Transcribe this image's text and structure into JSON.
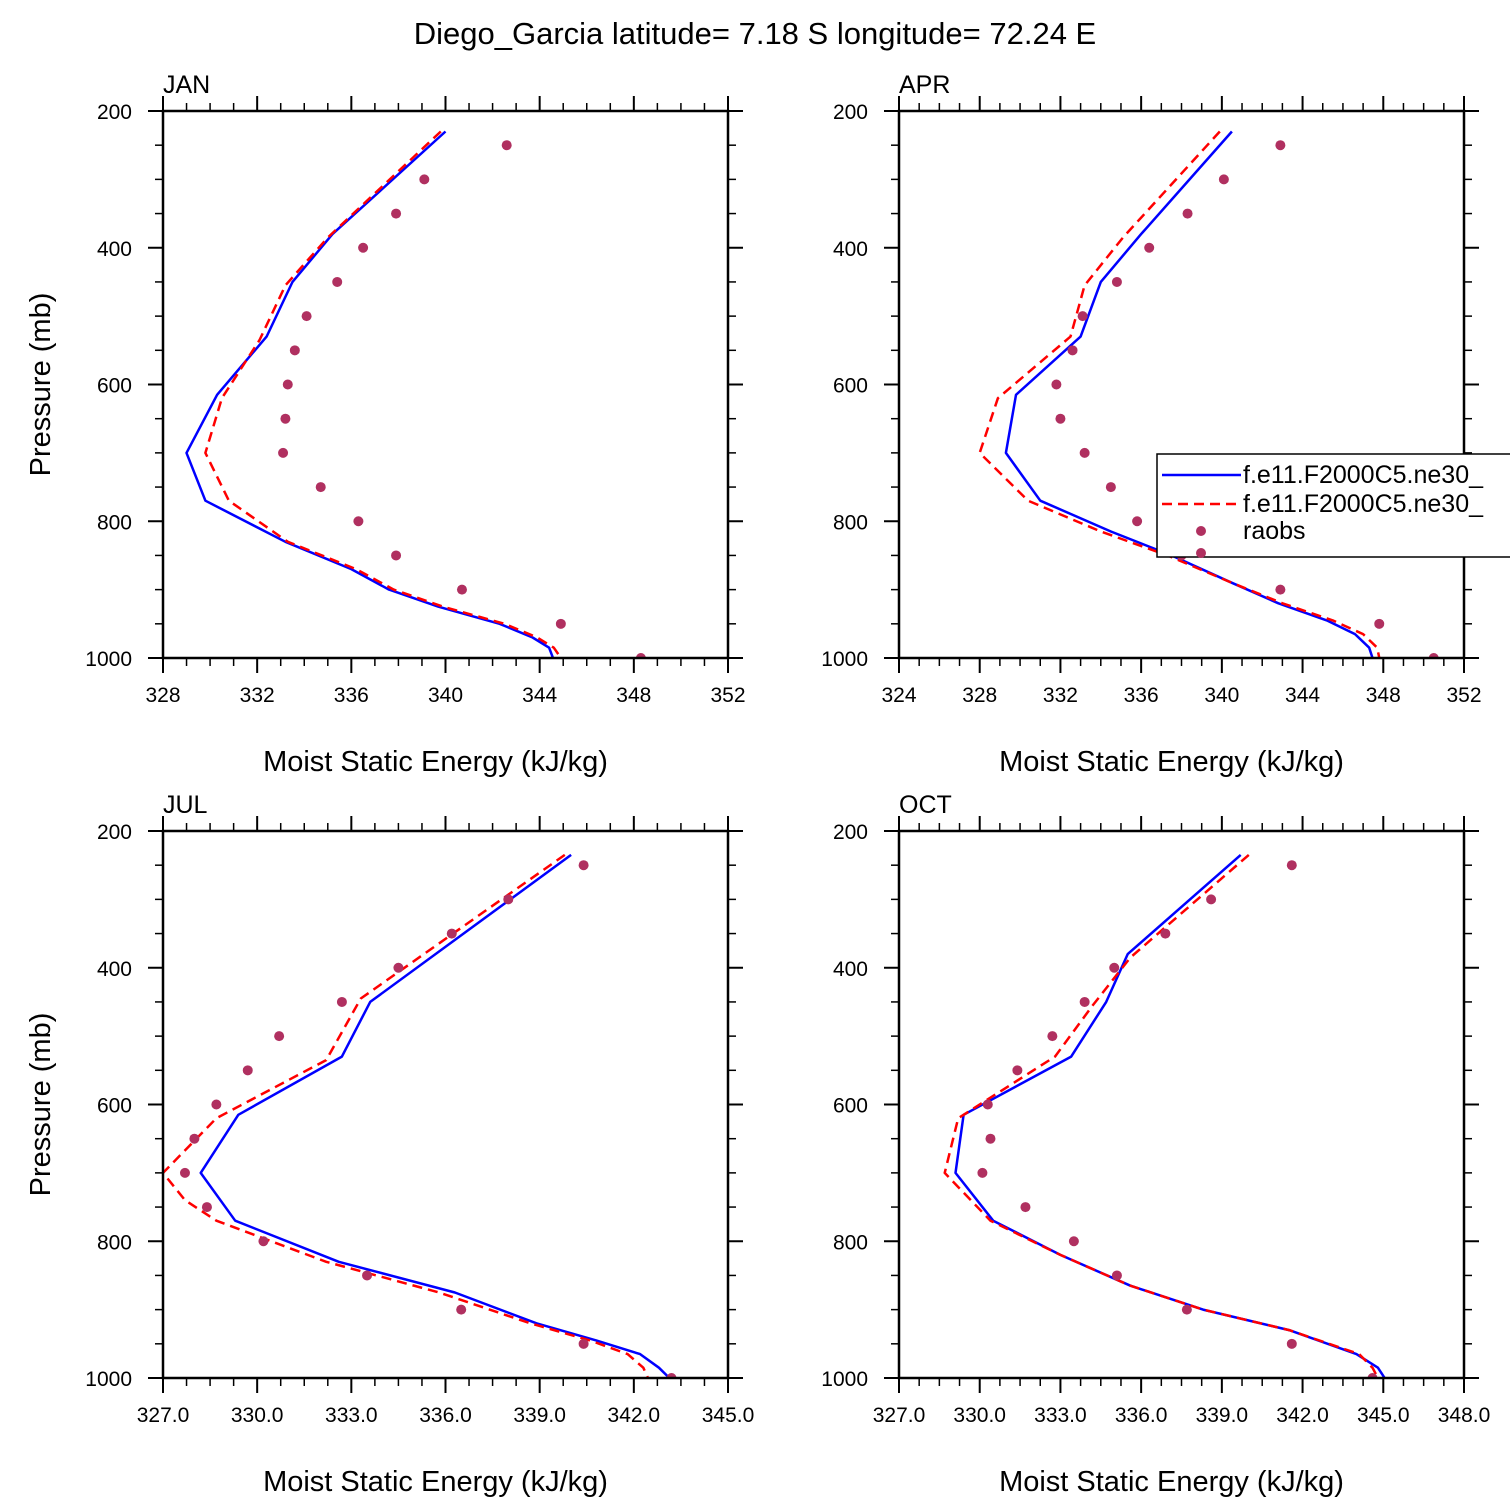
{
  "title": "Diego_Garcia  latitude= 7.18 S longitude= 72.24 E",
  "colors": {
    "model1": "#0000ff",
    "model2": "#ff0000",
    "raobs": "#b03060",
    "frame": "#000000"
  },
  "legend": {
    "location": "right edge of APR panel",
    "entries": [
      {
        "label": "f.e11.F2000C5.ne30_",
        "style": "solid",
        "color": "#0000ff"
      },
      {
        "label": "f.e11.F2000C5.ne30_",
        "style": "dashed",
        "color": "#ff0000"
      },
      {
        "label": "raobs",
        "style": "markers",
        "color": "#b03060"
      }
    ]
  },
  "chart_data": [
    {
      "type": "line",
      "panel": "JAN",
      "xlabel": "Moist Static Energy (kJ/kg)",
      "ylabel": "Pressure (mb)",
      "xlim": [
        328,
        352
      ],
      "ylim": [
        200,
        1000
      ],
      "y_inverted": true,
      "xticks": [
        "328",
        "332",
        "336",
        "340",
        "344",
        "348",
        "352"
      ],
      "yticks": [
        "200",
        "400",
        "600",
        "800",
        "1000"
      ],
      "series": [
        {
          "name": "f.e11.F2000C5.ne30_ (solid)",
          "style": "solid",
          "color": "#0000ff",
          "x": [
            340.0,
            335.2,
            333.5,
            332.4,
            330.3,
            329.0,
            329.8,
            333.2,
            336.0,
            337.6,
            339.7,
            342.3,
            343.7,
            344.4,
            344.6
          ],
          "y": [
            230,
            380,
            450,
            530,
            615,
            700,
            770,
            830,
            870,
            900,
            925,
            950,
            970,
            985,
            1003
          ]
        },
        {
          "name": "f.e11.F2000C5.ne30_ (dashed)",
          "style": "dashed",
          "color": "#ff0000",
          "x": [
            339.8,
            335.0,
            333.2,
            332.1,
            330.5,
            329.8,
            330.8,
            333.3,
            336.2,
            337.8,
            339.9,
            342.5,
            343.9,
            344.6,
            344.9
          ],
          "y": [
            230,
            385,
            455,
            535,
            620,
            700,
            770,
            830,
            870,
            900,
            925,
            950,
            970,
            985,
            1000
          ]
        },
        {
          "name": "raobs",
          "style": "markers",
          "color": "#b03060",
          "x": [
            342.6,
            339.1,
            337.9,
            336.5,
            335.4,
            334.1,
            333.6,
            333.3,
            333.2,
            333.1,
            334.7,
            336.3,
            337.9,
            340.7,
            344.9,
            348.3
          ],
          "y": [
            250,
            300,
            350,
            400,
            450,
            500,
            550,
            600,
            650,
            700,
            750,
            800,
            850,
            900,
            950,
            1000
          ]
        }
      ]
    },
    {
      "type": "line",
      "panel": "APR",
      "xlabel": "Moist Static Energy (kJ/kg)",
      "ylabel": "",
      "xlim": [
        324,
        352
      ],
      "ylim": [
        200,
        1000
      ],
      "y_inverted": true,
      "xticks": [
        "324",
        "328",
        "332",
        "336",
        "340",
        "344",
        "348",
        "352"
      ],
      "yticks": [
        "200",
        "400",
        "600",
        "800",
        "1000"
      ],
      "series": [
        {
          "name": "f.e11.F2000C5.ne30_ (solid)",
          "style": "solid",
          "color": "#0000ff",
          "x": [
            340.5,
            336.0,
            334.0,
            333.0,
            329.8,
            329.3,
            331.0,
            334.5,
            337.5,
            340.5,
            342.8,
            345.2,
            346.6,
            347.3,
            347.5
          ],
          "y": [
            230,
            380,
            450,
            530,
            615,
            700,
            770,
            815,
            850,
            890,
            920,
            945,
            965,
            985,
            1003
          ]
        },
        {
          "name": "f.e11.F2000C5.ne30_ (dashed)",
          "style": "dashed",
          "color": "#ff0000",
          "x": [
            339.9,
            335.1,
            333.2,
            332.5,
            328.9,
            328.0,
            330.4,
            334.0,
            337.3,
            340.5,
            343.0,
            345.5,
            347.0,
            347.7,
            347.8
          ],
          "y": [
            230,
            385,
            455,
            530,
            620,
            700,
            770,
            815,
            850,
            890,
            920,
            945,
            965,
            985,
            1000
          ]
        },
        {
          "name": "raobs",
          "style": "markers",
          "color": "#b03060",
          "x": [
            342.9,
            340.1,
            338.3,
            336.4,
            334.8,
            333.1,
            332.6,
            331.8,
            332.0,
            333.2,
            334.5,
            335.8,
            338.0,
            342.9,
            347.8,
            350.5
          ],
          "y": [
            250,
            300,
            350,
            400,
            450,
            500,
            550,
            600,
            650,
            700,
            750,
            800,
            850,
            900,
            950,
            1000
          ]
        }
      ]
    },
    {
      "type": "line",
      "panel": "JUL",
      "xlabel": "Moist Static Energy (kJ/kg)",
      "ylabel": "Pressure (mb)",
      "xlim": [
        327.0,
        345.0
      ],
      "ylim": [
        200,
        1000
      ],
      "y_inverted": true,
      "xticks": [
        "327.0",
        "330.0",
        "333.0",
        "336.0",
        "339.0",
        "342.0",
        "345.0"
      ],
      "yticks": [
        "200",
        "400",
        "600",
        "800",
        "1000"
      ],
      "series": [
        {
          "name": "f.e11.F2000C5.ne30_ (solid)",
          "style": "solid",
          "color": "#0000ff",
          "x": [
            340.0,
            333.6,
            332.7,
            329.4,
            328.2,
            329.3,
            332.6,
            336.3,
            338.9,
            340.8,
            342.2,
            342.8,
            343.2
          ],
          "y": [
            235,
            450,
            530,
            615,
            700,
            770,
            830,
            875,
            920,
            945,
            965,
            985,
            1003
          ]
        },
        {
          "name": "f.e11.F2000C5.ne30_ (dashed)",
          "style": "dashed",
          "color": "#ff0000",
          "x": [
            339.8,
            333.3,
            332.2,
            328.7,
            327.0,
            327.7,
            328.7,
            332.2,
            335.8,
            338.7,
            340.6,
            341.8,
            342.3,
            342.5
          ],
          "y": [
            235,
            445,
            535,
            620,
            700,
            740,
            770,
            830,
            875,
            920,
            945,
            965,
            985,
            1005
          ]
        },
        {
          "name": "raobs",
          "style": "markers",
          "color": "#b03060",
          "x": [
            340.4,
            338.0,
            336.2,
            334.5,
            332.7,
            330.7,
            329.7,
            328.7,
            328.0,
            327.7,
            328.4,
            330.2,
            333.5,
            336.5,
            340.4,
            343.2
          ],
          "y": [
            250,
            300,
            350,
            400,
            450,
            500,
            550,
            600,
            650,
            700,
            750,
            800,
            850,
            900,
            950,
            1000
          ]
        }
      ]
    },
    {
      "type": "line",
      "panel": "OCT",
      "xlabel": "Moist Static Energy (kJ/kg)",
      "ylabel": "",
      "xlim": [
        327.0,
        348.0
      ],
      "ylim": [
        200,
        1000
      ],
      "y_inverted": true,
      "xticks": [
        "327.0",
        "330.0",
        "333.0",
        "336.0",
        "339.0",
        "342.0",
        "345.0",
        "348.0"
      ],
      "yticks": [
        "200",
        "400",
        "600",
        "800",
        "1000"
      ],
      "series": [
        {
          "name": "f.e11.F2000C5.ne30_ (solid)",
          "style": "solid",
          "color": "#0000ff",
          "x": [
            339.7,
            335.5,
            334.7,
            333.4,
            329.4,
            329.1,
            330.5,
            333.0,
            335.6,
            338.3,
            341.5,
            344.0,
            344.8,
            345.1
          ],
          "y": [
            235,
            380,
            450,
            530,
            615,
            700,
            770,
            820,
            865,
            900,
            930,
            965,
            985,
            1003
          ]
        },
        {
          "name": "f.e11.F2000C5.ne30_ (dashed)",
          "style": "dashed",
          "color": "#ff0000",
          "x": [
            340.0,
            335.6,
            334.2,
            332.8,
            329.2,
            328.7,
            330.4,
            333.0,
            335.6,
            338.3,
            341.5,
            344.1,
            344.6,
            344.8
          ],
          "y": [
            235,
            385,
            455,
            530,
            620,
            700,
            770,
            820,
            865,
            900,
            930,
            965,
            985,
            1000
          ]
        },
        {
          "name": "raobs",
          "style": "markers",
          "color": "#b03060",
          "x": [
            341.6,
            338.6,
            336.9,
            335.0,
            333.9,
            332.7,
            331.4,
            330.3,
            330.4,
            330.1,
            331.7,
            333.5,
            335.1,
            337.7,
            341.6,
            344.6
          ],
          "y": [
            250,
            300,
            350,
            400,
            450,
            500,
            550,
            600,
            650,
            700,
            750,
            800,
            850,
            900,
            950,
            1000
          ]
        }
      ]
    }
  ]
}
